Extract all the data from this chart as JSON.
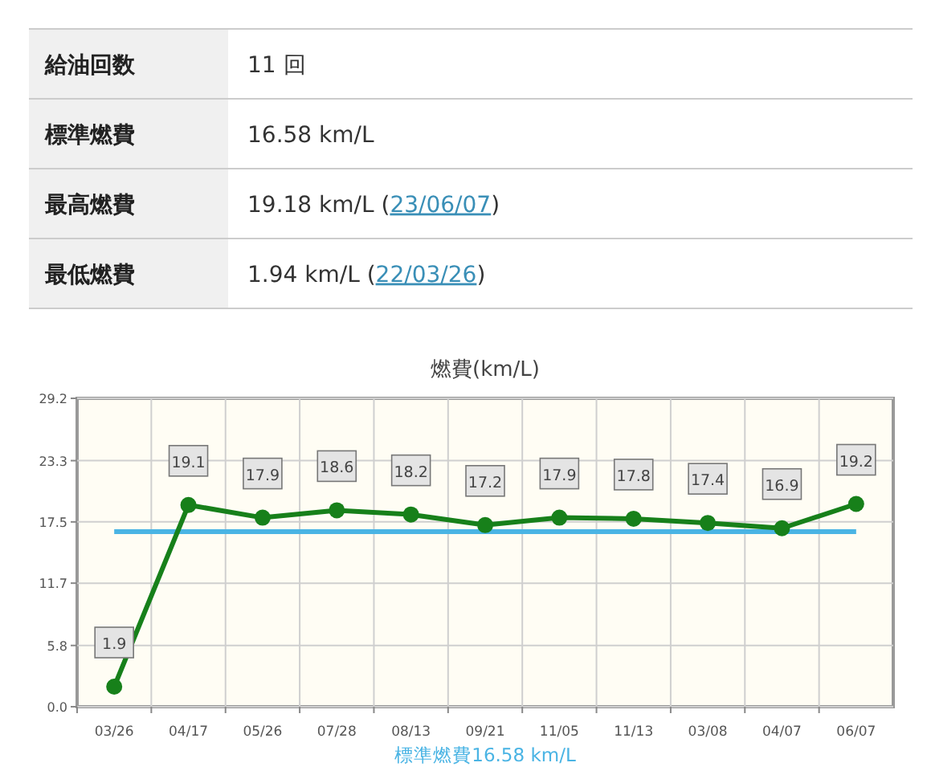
{
  "chart_data": {
    "type": "line",
    "title": "燃費(km/L)",
    "categories": [
      "03/26",
      "04/17",
      "05/26",
      "07/28",
      "08/13",
      "09/21",
      "11/05",
      "11/13",
      "03/08",
      "04/07",
      "06/07"
    ],
    "series": [
      {
        "color": "#17801a",
        "values": [
          1.9,
          19.1,
          17.9,
          18.6,
          18.2,
          17.2,
          17.9,
          17.8,
          17.4,
          16.9,
          19.2
        ]
      }
    ],
    "ylim": [
      0,
      29.2
    ],
    "yticks": [
      {
        "value": 0,
        "label": "0.0"
      },
      5.8,
      11.7,
      17.5,
      23.3,
      29.2
    ],
    "grid": true,
    "marker": "circle",
    "data_labels": true,
    "ref_lines": [
      {
        "axis": "y",
        "value": 16.58,
        "label": "標準燃費16.58 km/L",
        "color": "#4ab4e4"
      }
    ],
    "annotations": [
      "給油回数",
      "11 回",
      "標準燃費",
      "16.58 km/L",
      "最高燃費",
      "19.18 km/L (23/06/07)",
      "最低燃費",
      "1.94 km/L (22/03/26)"
    ]
  }
}
